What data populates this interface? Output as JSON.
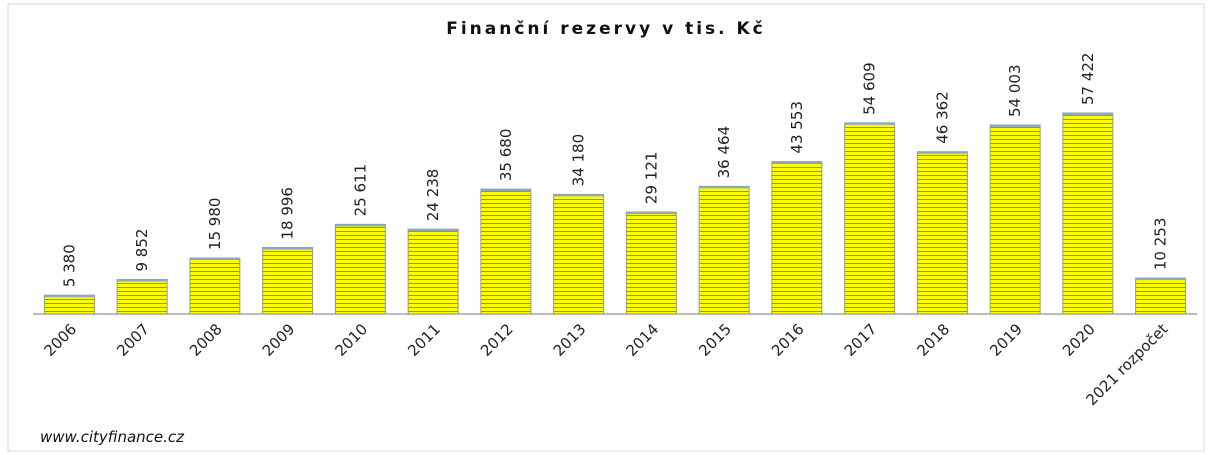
{
  "chart_data": {
    "type": "bar",
    "title": "Finanční rezervy v tis. Kč",
    "footer": "www.cityfinance.cz",
    "categories": [
      "2006",
      "2007",
      "2008",
      "2009",
      "2010",
      "2011",
      "2012",
      "2013",
      "2014",
      "2015",
      "2016",
      "2017",
      "2018",
      "2019",
      "2020",
      "2021 rozpočet"
    ],
    "values": [
      5380,
      9852,
      15980,
      18996,
      25611,
      24238,
      35680,
      34180,
      29121,
      36464,
      43553,
      54609,
      46362,
      54003,
      57422,
      10253
    ],
    "value_labels": [
      "5 380",
      "9 852",
      "15 980",
      "18 996",
      "25 611",
      "24 238",
      "35 680",
      "34 180",
      "29 121",
      "36 464",
      "43 553",
      "54 609",
      "46 362",
      "54 003",
      "57 422",
      "10 253"
    ],
    "color": "#ffff00",
    "ylim": [
      0,
      70000
    ]
  }
}
